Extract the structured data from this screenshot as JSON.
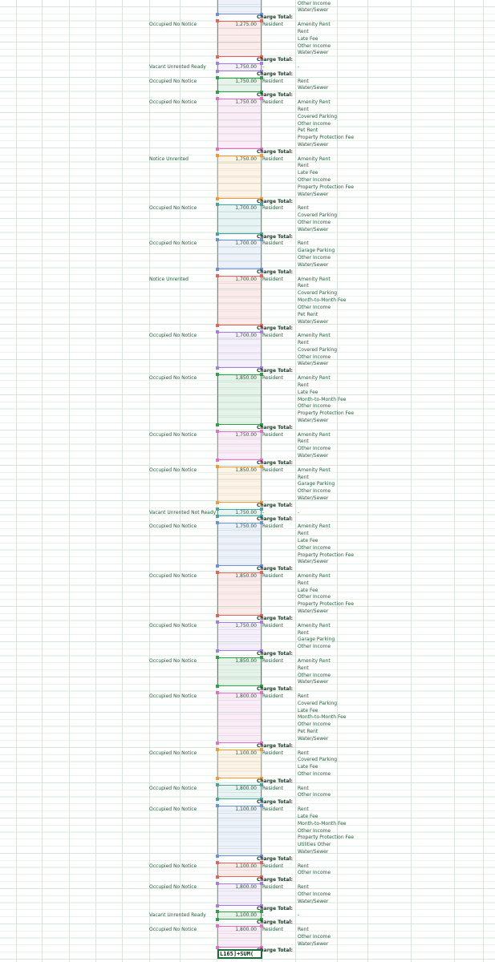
{
  "colors": {
    "blue": "#6d8fd6",
    "red": "#e2625e",
    "purple": "#a87de0",
    "green": "#2e9e4b",
    "pink": "#e16fc9",
    "orange": "#ef9a35",
    "teal": "#44a5a1",
    "text": "#1d5a34"
  },
  "total_label": "Charge Total:",
  "tenant_label": "Resident",
  "dash": "-",
  "edit_formula": "L165]+SUM(",
  "top_charges": [
    "Other Income",
    "Water/Sewer"
  ],
  "units": [
    {
      "status": "Occupied No Notice",
      "amount": "1,275.00",
      "tenant": "Resident",
      "color": "red",
      "charges": [
        "Amenity Rent",
        "Rent",
        "Late Fee",
        "Other Income",
        "Water/Sewer"
      ]
    },
    {
      "status": "Vacant Unrented Ready",
      "amount": "1,750.00",
      "tenant": "-",
      "color": "purple",
      "charges": [
        "-"
      ]
    },
    {
      "status": "Occupied No Notice",
      "amount": "1,750.00",
      "tenant": "Resident",
      "color": "green",
      "charges": [
        "Rent",
        "Water/Sewer"
      ]
    },
    {
      "status": "Occupied No Notice",
      "amount": "1,750.00",
      "tenant": "Resident",
      "color": "pink",
      "charges": [
        "Amenity Rent",
        "Rent",
        "Covered Parking",
        "Other Income",
        "Pet Rent",
        "Property Protection Fee",
        "Water/Sewer"
      ]
    },
    {
      "status": "Notice Unrented",
      "amount": "1,750.00",
      "tenant": "Resident",
      "color": "orange",
      "charges": [
        "Amenity Rent",
        "Rent",
        "Late Fee",
        "Other Income",
        "Property Protection Fee",
        "Water/Sewer"
      ]
    },
    {
      "status": "Occupied No Notice",
      "amount": "1,700.00",
      "tenant": "Resident",
      "color": "teal",
      "charges": [
        "Rent",
        "Covered Parking",
        "Other Income",
        "Water/Sewer"
      ]
    },
    {
      "status": "Occupied No Notice",
      "amount": "1,700.00",
      "tenant": "Resident",
      "color": "blue",
      "charges": [
        "Rent",
        "Garage Parking",
        "Other Income",
        "Water/Sewer"
      ]
    },
    {
      "status": "Notice Unrented",
      "amount": "1,700.00",
      "tenant": "Resident",
      "color": "red",
      "charges": [
        "Amenity Rent",
        "Rent",
        "Covered Parking",
        "Month-to-Month Fee",
        "Other Income",
        "Pet Rent",
        "Water/Sewer"
      ]
    },
    {
      "status": "Occupied No Notice",
      "amount": "1,700.00",
      "tenant": "Resident",
      "color": "purple",
      "charges": [
        "Amenity Rent",
        "Rent",
        "Covered Parking",
        "Other Income",
        "Water/Sewer"
      ]
    },
    {
      "status": "Occupied No Notice",
      "amount": "1,850.00",
      "tenant": "Resident",
      "color": "green",
      "charges": [
        "Amenity Rent",
        "Rent",
        "Late Fee",
        "Month-to-Month Fee",
        "Other Income",
        "Property Protection Fee",
        "Water/Sewer"
      ]
    },
    {
      "status": "Occupied No Notice",
      "amount": "1,750.00",
      "tenant": "Resident",
      "color": "pink",
      "charges": [
        "Amenity Rent",
        "Rent",
        "Other Income",
        "Water/Sewer"
      ]
    },
    {
      "status": "Occupied No Notice",
      "amount": "1,850.00",
      "tenant": "Resident",
      "color": "orange",
      "charges": [
        "Amenity Rent",
        "Rent",
        "Garage Parking",
        "Other Income",
        "Water/Sewer"
      ]
    },
    {
      "status": "Vacant Unrented Not Ready",
      "amount": "1,750.00",
      "tenant": "-",
      "color": "teal",
      "charges": [
        "-"
      ]
    },
    {
      "status": "Occupied No Notice",
      "amount": "1,750.00",
      "tenant": "Resident",
      "color": "blue",
      "charges": [
        "Amenity Rent",
        "Rent",
        "Late Fee",
        "Other Income",
        "Property Protection Fee",
        "Water/Sewer"
      ]
    },
    {
      "status": "Occupied No Notice",
      "amount": "1,850.00",
      "tenant": "Resident",
      "color": "red",
      "charges": [
        "Amenity Rent",
        "Rent",
        "Late Fee",
        "Other Income",
        "Property Protection Fee",
        "Water/Sewer"
      ]
    },
    {
      "status": "Occupied No Notice",
      "amount": "1,750.00",
      "tenant": "Resident",
      "color": "purple",
      "charges": [
        "Amenity Rent",
        "Rent",
        "Garage Parking",
        "Other Income"
      ]
    },
    {
      "status": "Occupied No Notice",
      "amount": "1,850.00",
      "tenant": "Resident",
      "color": "green",
      "charges": [
        "Amenity Rent",
        "Rent",
        "Other Income",
        "Water/Sewer"
      ]
    },
    {
      "status": "Occupied No Notice",
      "amount": "1,800.00",
      "tenant": "Resident",
      "color": "pink",
      "charges": [
        "Rent",
        "Covered Parking",
        "Late Fee",
        "Month-to-Month Fee",
        "Other Income",
        "Pet Rent",
        "Water/Sewer"
      ]
    },
    {
      "status": "Occupied No Notice",
      "amount": "1,100.00",
      "tenant": "Resident",
      "color": "orange",
      "charges": [
        "Rent",
        "Covered Parking",
        "Late Fee",
        "Other Income"
      ]
    },
    {
      "status": "Occupied No Notice",
      "amount": "1,800.00",
      "tenant": "Resident",
      "color": "teal",
      "charges": [
        "Rent",
        "Other Income"
      ]
    },
    {
      "status": "Occupied No Notice",
      "amount": "1,100.00",
      "tenant": "Resident",
      "color": "blue",
      "charges": [
        "Rent",
        "Late Fee",
        "Month-to-Month Fee",
        "Other Income",
        "Property Protection Fee",
        "Utilities Other",
        "Water/Sewer"
      ]
    },
    {
      "status": "Occupied No Notice",
      "amount": "1,100.00",
      "tenant": "Resident",
      "color": "red",
      "charges": [
        "Rent",
        "Other Income"
      ]
    },
    {
      "status": "Occupied No Notice",
      "amount": "1,800.00",
      "tenant": "Resident",
      "color": "purple",
      "charges": [
        "Rent",
        "Other Income",
        "Water/Sewer"
      ]
    },
    {
      "status": "Vacant Unrented Ready",
      "amount": "1,100.00",
      "tenant": "-",
      "color": "green",
      "charges": [
        "-"
      ]
    },
    {
      "status": "Occupied No Notice",
      "amount": "1,800.00",
      "tenant": "Resident",
      "color": "pink",
      "charges": [
        "Rent",
        "Other Income",
        "Water/Sewer"
      ]
    }
  ]
}
